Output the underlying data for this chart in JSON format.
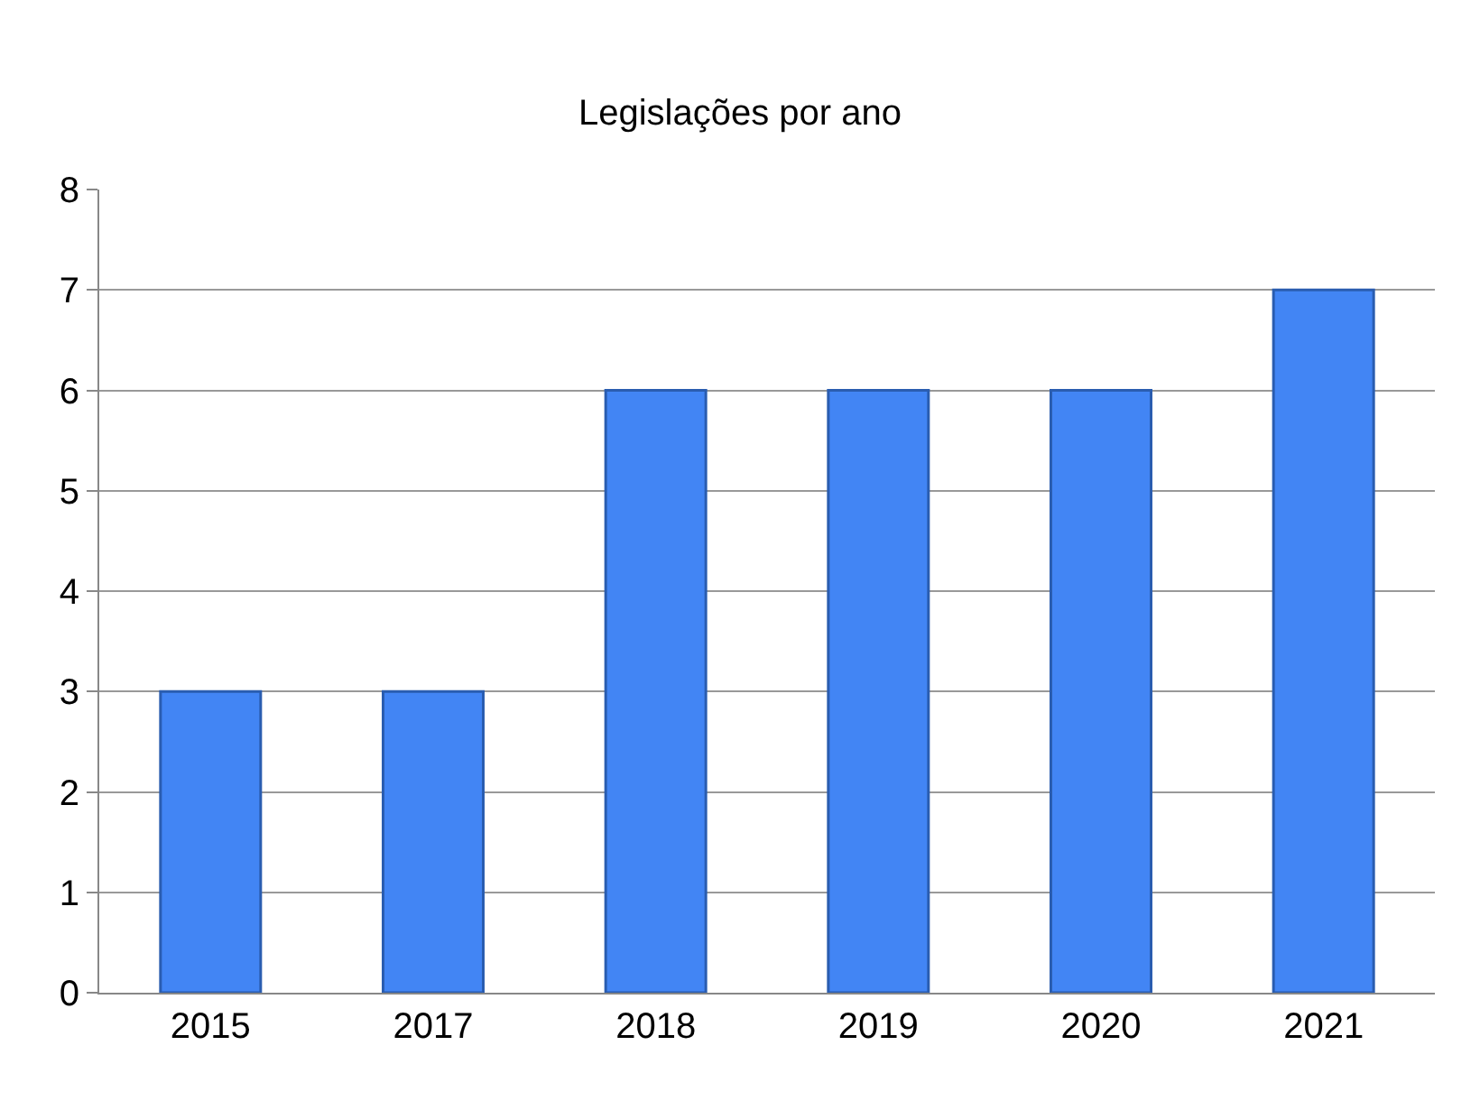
{
  "chart_data": {
    "type": "bar",
    "title": "Legislações por ano",
    "categories": [
      "2015",
      "2017",
      "2018",
      "2019",
      "2020",
      "2021"
    ],
    "values": [
      3,
      3,
      6,
      6,
      6,
      7
    ],
    "color": "#4285f4",
    "ylim": [
      0,
      8
    ],
    "yticks": [
      0,
      1,
      2,
      3,
      4,
      5,
      6,
      7,
      8
    ],
    "grid": "y"
  }
}
